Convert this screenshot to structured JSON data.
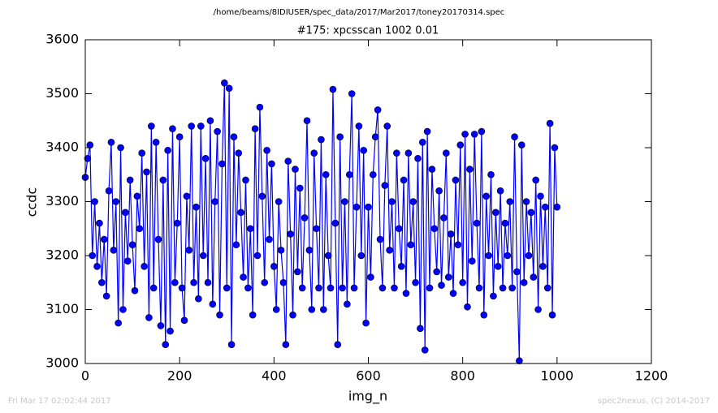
{
  "chart_data": {
    "type": "line",
    "title": "/home/beams/8IDIUSER/spec_data/2017/Mar2017/toney20170314.spec",
    "subtitle": "#175: xpcsscan 1002 0.01",
    "xlabel": "img_n",
    "ylabel": "ccdc",
    "xlim": [
      0,
      1200
    ],
    "xticks": [
      0,
      200,
      400,
      600,
      800,
      1000,
      1200
    ],
    "ylim": [
      3000,
      3600
    ],
    "yticks": [
      3000,
      3100,
      3200,
      3300,
      3400,
      3500,
      3600
    ],
    "grid": false,
    "x": [
      0,
      5,
      10,
      15,
      20,
      25,
      30,
      35,
      40,
      45,
      50,
      55,
      60,
      65,
      70,
      75,
      80,
      85,
      90,
      95,
      100,
      105,
      110,
      115,
      120,
      125,
      130,
      135,
      140,
      145,
      150,
      155,
      160,
      165,
      170,
      175,
      180,
      185,
      190,
      195,
      200,
      205,
      210,
      215,
      220,
      225,
      230,
      235,
      240,
      245,
      250,
      255,
      260,
      265,
      270,
      275,
      280,
      285,
      290,
      295,
      300,
      305,
      310,
      315,
      320,
      325,
      330,
      335,
      340,
      345,
      350,
      355,
      360,
      365,
      370,
      375,
      380,
      385,
      390,
      395,
      400,
      405,
      410,
      415,
      420,
      425,
      430,
      435,
      440,
      445,
      450,
      455,
      460,
      465,
      470,
      475,
      480,
      485,
      490,
      495,
      500,
      505,
      510,
      515,
      520,
      525,
      530,
      535,
      540,
      545,
      550,
      555,
      560,
      565,
      570,
      575,
      580,
      585,
      590,
      595,
      600,
      605,
      610,
      615,
      620,
      625,
      630,
      635,
      640,
      645,
      650,
      655,
      660,
      665,
      670,
      675,
      680,
      685,
      690,
      695,
      700,
      705,
      710,
      715,
      720,
      725,
      730,
      735,
      740,
      745,
      750,
      755,
      760,
      765,
      770,
      775,
      780,
      785,
      790,
      795,
      800,
      805,
      810,
      815,
      820,
      825,
      830,
      835,
      840,
      845,
      850,
      855,
      860,
      865,
      870,
      875,
      880,
      885,
      890,
      895,
      900,
      905,
      910,
      915,
      920,
      925,
      930,
      935,
      940,
      945,
      950,
      955,
      960,
      965,
      970,
      975,
      980,
      985,
      990,
      995,
      1000
    ],
    "series": [
      {
        "color": "#0000ff",
        "values": [
          3345,
          3380,
          3405,
          3200,
          3300,
          3180,
          3260,
          3150,
          3230,
          3125,
          3320,
          3410,
          3210,
          3300,
          3075,
          3400,
          3100,
          3280,
          3190,
          3340,
          3220,
          3135,
          3310,
          3250,
          3390,
          3180,
          3355,
          3085,
          3440,
          3140,
          3410,
          3230,
          3070,
          3340,
          3035,
          3395,
          3060,
          3435,
          3150,
          3260,
          3420,
          3140,
          3080,
          3310,
          3210,
          3440,
          3150,
          3290,
          3120,
          3440,
          3200,
          3380,
          3150,
          3450,
          3110,
          3300,
          3430,
          3090,
          3370,
          3520,
          3140,
          3510,
          3035,
          3420,
          3220,
          3390,
          3280,
          3160,
          3340,
          3140,
          3250,
          3090,
          3435,
          3200,
          3475,
          3310,
          3150,
          3395,
          3230,
          3370,
          3180,
          3100,
          3300,
          3210,
          3150,
          3035,
          3375,
          3240,
          3090,
          3360,
          3170,
          3325,
          3140,
          3270,
          3450,
          3210,
          3100,
          3390,
          3250,
          3140,
          3415,
          3100,
          3350,
          3200,
          3140,
          3508,
          3260,
          3035,
          3420,
          3140,
          3300,
          3110,
          3350,
          3500,
          3140,
          3290,
          3440,
          3200,
          3395,
          3075,
          3290,
          3160,
          3350,
          3420,
          3470,
          3230,
          3140,
          3330,
          3440,
          3210,
          3300,
          3140,
          3390,
          3250,
          3180,
          3340,
          3130,
          3390,
          3220,
          3300,
          3150,
          3380,
          3065,
          3410,
          3025,
          3430,
          3140,
          3360,
          3250,
          3170,
          3320,
          3145,
          3270,
          3390,
          3160,
          3240,
          3130,
          3340,
          3220,
          3405,
          3150,
          3425,
          3105,
          3360,
          3190,
          3425,
          3260,
          3140,
          3430,
          3090,
          3310,
          3200,
          3350,
          3125,
          3280,
          3180,
          3320,
          3140,
          3260,
          3200,
          3300,
          3140,
          3420,
          3170,
          3005,
          3405,
          3150,
          3300,
          3200,
          3280,
          3160,
          3340,
          3100,
          3310,
          3180,
          3290,
          3140,
          3445,
          3090,
          3400,
          3290
        ]
      }
    ],
    "footer": {
      "left": "Fri Mar 17 02:02:44 2017",
      "right": "spec2nexus, (C) 2014-2017"
    }
  }
}
